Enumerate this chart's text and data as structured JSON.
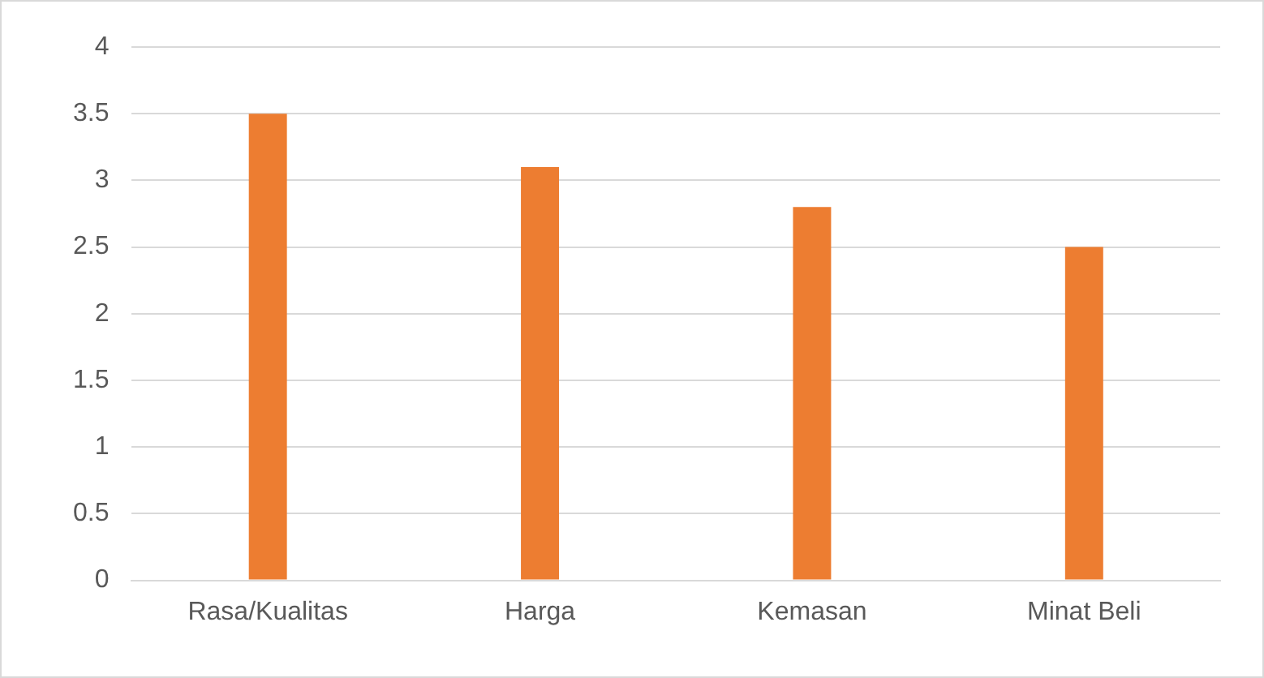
{
  "chart_data": {
    "type": "bar",
    "categories": [
      "Rasa/Kualitas",
      "Harga",
      "Kemasan",
      "Minat Beli"
    ],
    "values": [
      3.5,
      3.1,
      2.8,
      2.5
    ],
    "color": "#ed7d31",
    "ylim": [
      0,
      4
    ],
    "yticks": [
      0,
      0.5,
      1,
      1.5,
      2,
      2.5,
      3,
      3.5,
      4
    ],
    "grid": "y"
  }
}
